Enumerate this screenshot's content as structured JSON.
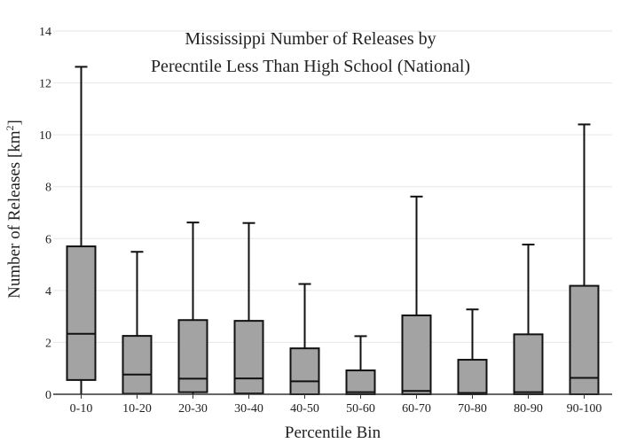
{
  "chart_data": {
    "type": "box",
    "title_lines": [
      "Mississippi Number of Releases by",
      "Perecntile Less Than High School (National)"
    ],
    "xlabel": "Percentile Bin",
    "ylabel": "Number of Releases  [km²]",
    "ylabel_main": "Number of Releases  [km",
    "ylabel_sup": "2",
    "ylabel_tail": "]",
    "ylim": [
      0,
      14
    ],
    "yticks": [
      0,
      2,
      4,
      6,
      8,
      10,
      12,
      14
    ],
    "grid": true,
    "legend": "none",
    "colors": {
      "box_fill": "#a3a3a3",
      "box_stroke": "#111111",
      "grid": "#e6e6e6",
      "axis": "#333333"
    },
    "categories": [
      "0-10",
      "10-20",
      "20-30",
      "30-40",
      "40-50",
      "50-60",
      "60-70",
      "70-80",
      "80-90",
      "90-100"
    ],
    "boxes": [
      {
        "category": "0-10",
        "min": 0.0,
        "q1": 0.55,
        "median": 2.33,
        "q3": 5.7,
        "max": 12.62
      },
      {
        "category": "10-20",
        "min": 0.0,
        "q1": 0.02,
        "median": 0.76,
        "q3": 2.25,
        "max": 5.49
      },
      {
        "category": "20-30",
        "min": 0.0,
        "q1": 0.08,
        "median": 0.6,
        "q3": 2.86,
        "max": 6.62
      },
      {
        "category": "30-40",
        "min": 0.0,
        "q1": 0.03,
        "median": 0.61,
        "q3": 2.83,
        "max": 6.6
      },
      {
        "category": "40-50",
        "min": 0.0,
        "q1": 0.0,
        "median": 0.5,
        "q3": 1.77,
        "max": 4.25
      },
      {
        "category": "50-60",
        "min": 0.0,
        "q1": 0.0,
        "median": 0.08,
        "q3": 0.92,
        "max": 2.24
      },
      {
        "category": "60-70",
        "min": 0.0,
        "q1": 0.0,
        "median": 0.13,
        "q3": 3.04,
        "max": 7.62
      },
      {
        "category": "70-80",
        "min": 0.0,
        "q1": 0.0,
        "median": 0.05,
        "q3": 1.33,
        "max": 3.27
      },
      {
        "category": "80-90",
        "min": 0.0,
        "q1": 0.0,
        "median": 0.08,
        "q3": 2.31,
        "max": 5.77
      },
      {
        "category": "90-100",
        "min": 0.0,
        "q1": 0.0,
        "median": 0.63,
        "q3": 4.18,
        "max": 10.4
      }
    ]
  }
}
